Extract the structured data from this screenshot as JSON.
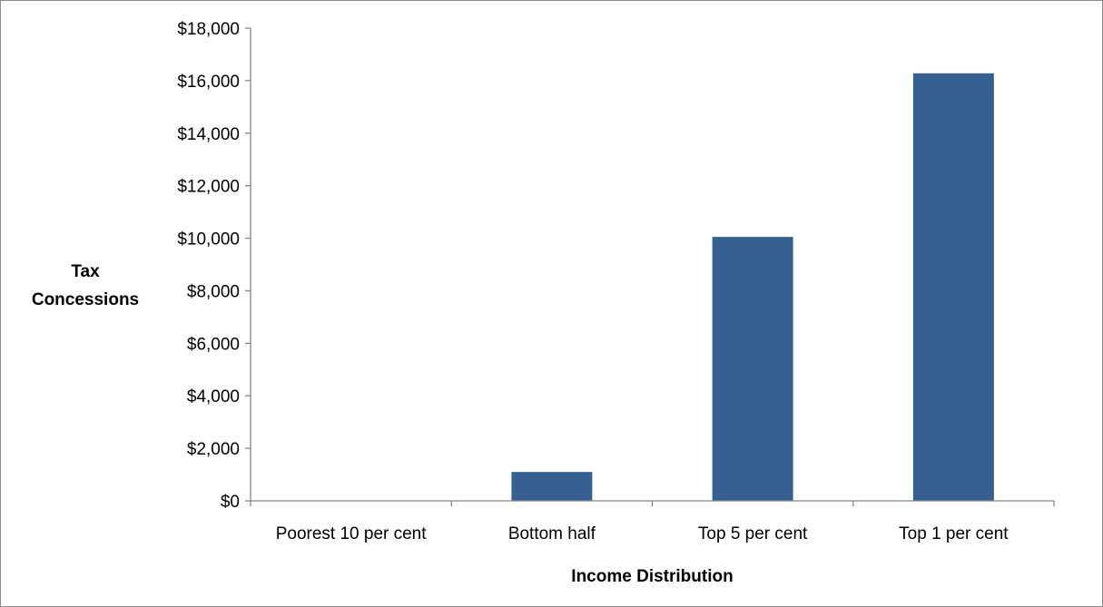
{
  "chart_data": {
    "type": "bar",
    "categories": [
      "Poorest 10 per cent",
      "Bottom half",
      "Top 5 per cent",
      "Top 1 per cent"
    ],
    "values": [
      0,
      1100,
      10050,
      16280
    ],
    "title": "",
    "xlabel": "Income Distribution",
    "ylabel_lines": [
      "Tax",
      "Concessions"
    ],
    "ylim": [
      0,
      18000
    ],
    "yticks": [
      0,
      2000,
      4000,
      6000,
      8000,
      10000,
      12000,
      14000,
      16000,
      18000
    ],
    "ytick_labels": [
      "$0",
      "$2,000",
      "$4,000",
      "$6,000",
      "$8,000",
      "$10,000",
      "$12,000",
      "$14,000",
      "$16,000",
      "$18,000"
    ],
    "grid": false,
    "legend": "none",
    "bar_color": "#376092",
    "axis_color": "#868686"
  }
}
